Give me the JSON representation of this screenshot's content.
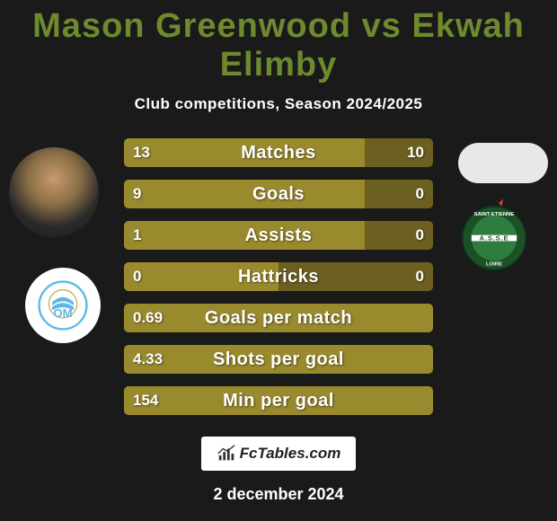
{
  "title_color": "#6d8a2e",
  "title_parts": {
    "player1": "Mason Greenwood",
    "vs": "vs",
    "player2": "Ekwah Elimby"
  },
  "subtitle": "Club competitions, Season 2024/2025",
  "colors": {
    "bar_primary": "#9a8a2e",
    "bar_secondary": "#6b6020",
    "bar_border_radius": 5,
    "background": "#1a1a1a",
    "text": "#ffffff"
  },
  "bars": [
    {
      "label": "Matches",
      "left_val": "13",
      "right_val": "10",
      "left_pct": 78,
      "right_pct": 22
    },
    {
      "label": "Goals",
      "left_val": "9",
      "right_val": "0",
      "left_pct": 78,
      "right_pct": 22
    },
    {
      "label": "Assists",
      "left_val": "1",
      "right_val": "0",
      "left_pct": 78,
      "right_pct": 22
    },
    {
      "label": "Hattricks",
      "left_val": "0",
      "right_val": "0",
      "left_pct": 50,
      "right_pct": 50
    },
    {
      "label": "Goals per match",
      "left_val": "0.69",
      "right_val": "",
      "left_pct": 100,
      "right_pct": 0
    },
    {
      "label": "Shots per goal",
      "left_val": "4.33",
      "right_val": "",
      "left_pct": 100,
      "right_pct": 0
    },
    {
      "label": "Min per goal",
      "left_val": "154",
      "right_val": "",
      "left_pct": 100,
      "right_pct": 0
    }
  ],
  "club_left": {
    "name": "Olympique Marseille",
    "ring_color": "#5fb8e8",
    "letters_color": "#5fb8e8"
  },
  "club_right": {
    "name": "AS Saint-Étienne",
    "bg_start": "#2e7d3e",
    "bg_end": "#1a5226",
    "stripe": "#ffffff",
    "text": "A.S.S.E"
  },
  "footer_brand": "FcTables.com",
  "date": "2 december 2024"
}
